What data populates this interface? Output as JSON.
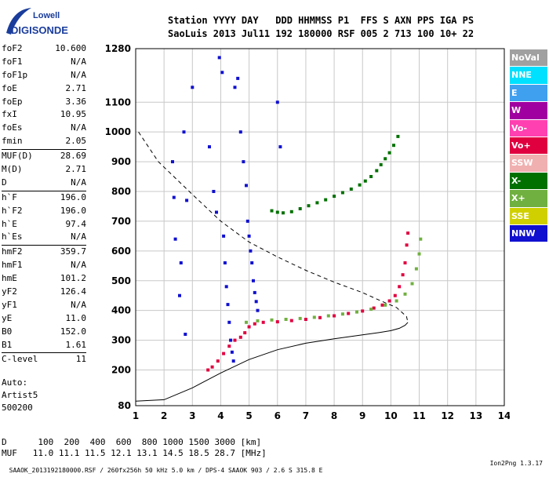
{
  "logo": {
    "line1": "Lowell",
    "line2": "DIGISONDE"
  },
  "header": {
    "line1": "Station YYYY DAY   DDD HHMMSS P1  FFS S AXN PPS IGA PS",
    "line2": "SaoLuis 2013 Jul11 192 180000 RSF 005 2 713 100 10+ 22"
  },
  "params": [
    {
      "label": "foF2",
      "value": "10.600"
    },
    {
      "label": "foF1",
      "value": "N/A"
    },
    {
      "label": "foF1p",
      "value": "N/A"
    },
    {
      "label": "foE",
      "value": "2.71"
    },
    {
      "label": "foEp",
      "value": "3.36"
    },
    {
      "label": "fxI",
      "value": "10.95"
    },
    {
      "label": "foEs",
      "value": "N/A"
    },
    {
      "label": "fmin",
      "value": "2.05"
    },
    {
      "label": "MUF(D)",
      "value": "28.69",
      "sep": true
    },
    {
      "label": "M(D)",
      "value": "2.71"
    },
    {
      "label": "D",
      "value": "N/A"
    },
    {
      "label": "h`F",
      "value": "196.0",
      "sep": true
    },
    {
      "label": "h`F2",
      "value": "196.0"
    },
    {
      "label": "h`E",
      "value": "97.4"
    },
    {
      "label": "h`Es",
      "value": "N/A"
    },
    {
      "label": "hmF2",
      "value": "359.7",
      "sep": true
    },
    {
      "label": "hmF1",
      "value": "N/A"
    },
    {
      "label": "hmE",
      "value": "101.2"
    },
    {
      "label": "yF2",
      "value": "126.4"
    },
    {
      "label": "yF1",
      "value": "N/A"
    },
    {
      "label": "yE",
      "value": "11.0"
    },
    {
      "label": "B0",
      "value": "152.0"
    },
    {
      "label": "B1",
      "value": "1.61"
    },
    {
      "label": "C-level",
      "value": "11",
      "sep": true
    }
  ],
  "autoscaling": {
    "line1": "Auto:",
    "line2": "Artist5",
    "line3": "500200"
  },
  "muf_table": {
    "d_row": "D      100  200  400  600  800 1000 1500 3000 [km]",
    "muf_row": "MUF   11.0 11.1 11.5 12.1 13.1 14.5 18.5 28.7 [MHz]"
  },
  "footer": {
    "info": "SAAOK_2013192180000.RSF / 260fx256h 50 kHz 5.0 km / DPS-4 SAAOK 903 / 2.6 S 315.8 E",
    "version": "Ion2Png 1.3.17"
  },
  "legend": [
    {
      "label": "NoVal",
      "color": "#a0a0a0"
    },
    {
      "label": "NNE",
      "color": "#00e0ff"
    },
    {
      "label": "E",
      "color": "#40a0f0"
    },
    {
      "label": "W",
      "color": "#a000a0"
    },
    {
      "label": "Vo-",
      "color": "#ff40b0"
    },
    {
      "label": "Vo+",
      "color": "#e00040"
    },
    {
      "label": "SSW",
      "color": "#f0b0b0"
    },
    {
      "label": "X-",
      "color": "#007000"
    },
    {
      "label": "X+",
      "color": "#70b040"
    },
    {
      "label": "SSE",
      "color": "#d0d000"
    },
    {
      "label": "NNW",
      "color": "#1010d0"
    }
  ],
  "chart_data": {
    "type": "scatter",
    "xlim": [
      1,
      14
    ],
    "ylim": [
      80,
      1280
    ],
    "x_ticks": [
      "1",
      "2",
      "3",
      "4",
      "5",
      "6",
      "7",
      "8",
      "9",
      "10",
      "11",
      "12",
      "13",
      "14"
    ],
    "y_ticks": [
      "80",
      "200",
      "300",
      "400",
      "500",
      "600",
      "700",
      "800",
      "900",
      "1000",
      "1100",
      "1280"
    ],
    "y_tick_values": [
      80,
      200,
      300,
      400,
      500,
      600,
      700,
      800,
      900,
      1000,
      1100,
      1280
    ],
    "grid": true,
    "legend_position": "right",
    "series": [
      {
        "name": "Vo+",
        "color": "#e00040",
        "kind": "points",
        "points": [
          [
            3.55,
            200
          ],
          [
            3.7,
            210
          ],
          [
            3.9,
            230
          ],
          [
            4.1,
            255
          ],
          [
            4.3,
            280
          ],
          [
            4.5,
            300
          ],
          [
            4.7,
            310
          ],
          [
            4.85,
            325
          ],
          [
            5.0,
            345
          ],
          [
            5.2,
            355
          ],
          [
            5.5,
            360
          ],
          [
            6.0,
            362
          ],
          [
            6.5,
            366
          ],
          [
            7.0,
            370
          ],
          [
            7.5,
            376
          ],
          [
            8.0,
            382
          ],
          [
            8.5,
            390
          ],
          [
            9.0,
            398
          ],
          [
            9.4,
            408
          ],
          [
            9.7,
            418
          ],
          [
            9.95,
            432
          ],
          [
            10.15,
            450
          ],
          [
            10.3,
            480
          ],
          [
            10.42,
            520
          ],
          [
            10.5,
            560
          ],
          [
            10.56,
            620
          ],
          [
            10.6,
            660
          ]
        ]
      },
      {
        "name": "X+",
        "color": "#70b040",
        "kind": "points",
        "points": [
          [
            4.9,
            360
          ],
          [
            5.3,
            365
          ],
          [
            5.8,
            368
          ],
          [
            6.3,
            370
          ],
          [
            6.8,
            373
          ],
          [
            7.3,
            377
          ],
          [
            7.8,
            382
          ],
          [
            8.3,
            388
          ],
          [
            8.8,
            395
          ],
          [
            9.3,
            404
          ],
          [
            9.8,
            418
          ],
          [
            10.2,
            432
          ],
          [
            10.5,
            455
          ],
          [
            10.75,
            490
          ],
          [
            10.9,
            540
          ],
          [
            11.0,
            590
          ],
          [
            11.05,
            640
          ]
        ]
      },
      {
        "name": "X-",
        "color": "#007000",
        "kind": "points",
        "points": [
          [
            5.8,
            735
          ],
          [
            6.0,
            730
          ],
          [
            6.2,
            728
          ],
          [
            6.5,
            732
          ],
          [
            6.8,
            742
          ],
          [
            7.1,
            752
          ],
          [
            7.4,
            762
          ],
          [
            7.7,
            772
          ],
          [
            8.0,
            784
          ],
          [
            8.3,
            796
          ],
          [
            8.6,
            808
          ],
          [
            8.9,
            822
          ],
          [
            9.1,
            835
          ],
          [
            9.3,
            850
          ],
          [
            9.5,
            870
          ],
          [
            9.65,
            890
          ],
          [
            9.8,
            910
          ],
          [
            9.95,
            930
          ],
          [
            10.1,
            955
          ],
          [
            10.25,
            985
          ]
        ]
      },
      {
        "name": "NNW",
        "color": "#1010d0",
        "kind": "points",
        "points": [
          [
            2.3,
            900
          ],
          [
            2.35,
            780
          ],
          [
            2.4,
            640
          ],
          [
            2.55,
            450
          ],
          [
            2.6,
            560
          ],
          [
            2.7,
            1000
          ],
          [
            2.75,
            320
          ],
          [
            2.8,
            770
          ],
          [
            3.0,
            1150
          ],
          [
            3.6,
            950
          ],
          [
            3.75,
            800
          ],
          [
            3.85,
            730
          ],
          [
            3.95,
            1250
          ],
          [
            4.05,
            1200
          ],
          [
            4.1,
            650
          ],
          [
            4.15,
            560
          ],
          [
            4.2,
            480
          ],
          [
            4.25,
            420
          ],
          [
            4.3,
            360
          ],
          [
            4.35,
            300
          ],
          [
            4.4,
            260
          ],
          [
            4.45,
            230
          ],
          [
            4.5,
            1150
          ],
          [
            4.6,
            1180
          ],
          [
            4.7,
            1000
          ],
          [
            4.8,
            900
          ],
          [
            4.9,
            820
          ],
          [
            4.95,
            700
          ],
          [
            5.0,
            650
          ],
          [
            5.05,
            600
          ],
          [
            5.1,
            560
          ],
          [
            5.15,
            500
          ],
          [
            5.2,
            460
          ],
          [
            5.25,
            430
          ],
          [
            5.3,
            400
          ],
          [
            6.0,
            1100
          ],
          [
            6.1,
            950
          ]
        ]
      }
    ],
    "curves": [
      {
        "kind": "dashed",
        "points": [
          [
            1.1,
            1000
          ],
          [
            1.8,
            900
          ],
          [
            3.0,
            790
          ],
          [
            4.0,
            700
          ],
          [
            5.0,
            630
          ],
          [
            6.0,
            580
          ],
          [
            7.0,
            535
          ],
          [
            8.0,
            495
          ],
          [
            9.0,
            460
          ],
          [
            9.7,
            430
          ],
          [
            10.2,
            410
          ],
          [
            10.55,
            380
          ],
          [
            10.6,
            360
          ]
        ]
      },
      {
        "kind": "solid",
        "points": [
          [
            1.0,
            95
          ],
          [
            2.0,
            100
          ],
          [
            3.0,
            140
          ],
          [
            4.0,
            190
          ],
          [
            5.0,
            235
          ],
          [
            6.0,
            268
          ],
          [
            7.0,
            290
          ],
          [
            8.0,
            305
          ],
          [
            9.0,
            318
          ],
          [
            9.6,
            326
          ],
          [
            10.0,
            332
          ],
          [
            10.3,
            340
          ],
          [
            10.5,
            350
          ],
          [
            10.6,
            360
          ]
        ]
      }
    ]
  }
}
